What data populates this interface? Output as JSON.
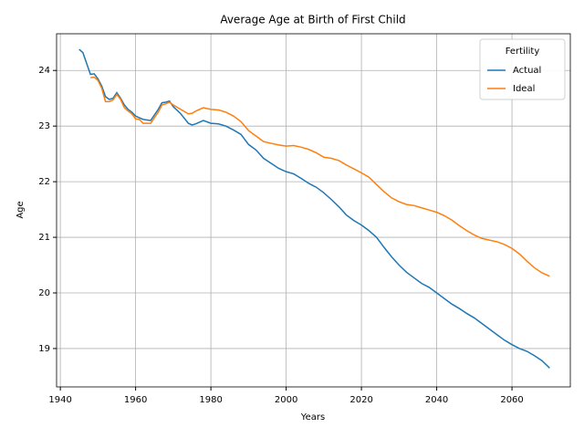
{
  "chart_data": {
    "type": "line",
    "title": "Average Age at Birth of First Child",
    "xlabel": "Years",
    "ylabel": "Age",
    "legend_title": "Fertility",
    "legend": "upper right",
    "grid": true,
    "x": [
      1945,
      1946,
      1948,
      1949,
      1950,
      1951,
      1952,
      1953,
      1954,
      1955,
      1956,
      1957,
      1958,
      1959,
      1960,
      1961,
      1962,
      1964,
      1966,
      1967,
      1968,
      1969,
      1970,
      1972,
      1974,
      1975,
      1976,
      1978,
      1980,
      1982,
      1984,
      1986,
      1988,
      1990,
      1992,
      1994,
      1996,
      1998,
      2000,
      2002,
      2004,
      2006,
      2008,
      2010,
      2012,
      2014,
      2016,
      2018,
      2020,
      2022,
      2024,
      2026,
      2028,
      2030,
      2032,
      2034,
      2036,
      2038,
      2040,
      2042,
      2044,
      2046,
      2048,
      2050,
      2052,
      2054,
      2056,
      2058,
      2060,
      2062,
      2064,
      2066,
      2068,
      2070
    ],
    "series": [
      {
        "name": "Actual",
        "color": "#1f77b4",
        "values": [
          24.38,
          24.32,
          23.93,
          23.94,
          23.85,
          23.72,
          23.53,
          23.48,
          23.5,
          23.6,
          23.5,
          23.38,
          23.3,
          23.25,
          23.18,
          23.15,
          23.12,
          23.1,
          23.3,
          23.42,
          23.43,
          23.45,
          23.35,
          23.22,
          23.05,
          23.02,
          23.04,
          23.1,
          23.05,
          23.04,
          23.0,
          22.93,
          22.85,
          22.67,
          22.57,
          22.42,
          22.33,
          22.24,
          22.18,
          22.14,
          22.06,
          21.97,
          21.9,
          21.8,
          21.68,
          21.55,
          21.4,
          21.3,
          21.22,
          21.12,
          21.0,
          20.82,
          20.65,
          20.5,
          20.37,
          20.27,
          20.17,
          20.1,
          20.0,
          19.9,
          19.8,
          19.72,
          19.63,
          19.55,
          19.45,
          19.35,
          19.25,
          19.15,
          19.07,
          19.0,
          18.95,
          18.87,
          18.78,
          18.65
        ]
      },
      {
        "name": "Ideal",
        "color": "#ff7f0e",
        "values": [
          null,
          null,
          23.87,
          23.88,
          23.82,
          23.68,
          23.44,
          23.44,
          23.47,
          23.57,
          23.48,
          23.33,
          23.27,
          23.22,
          23.13,
          23.12,
          23.05,
          23.05,
          23.25,
          23.38,
          23.4,
          23.43,
          23.38,
          23.3,
          23.22,
          23.23,
          23.27,
          23.33,
          23.3,
          23.29,
          23.25,
          23.18,
          23.08,
          22.92,
          22.82,
          22.72,
          22.69,
          22.66,
          22.64,
          22.65,
          22.62,
          22.58,
          22.52,
          22.44,
          22.42,
          22.38,
          22.3,
          22.23,
          22.16,
          22.08,
          21.95,
          21.82,
          21.71,
          21.64,
          21.59,
          21.57,
          21.53,
          21.49,
          21.45,
          21.39,
          21.31,
          21.21,
          21.12,
          21.04,
          20.98,
          20.95,
          20.92,
          20.87,
          20.8,
          20.7,
          20.57,
          20.45,
          20.36,
          20.3
        ]
      }
    ],
    "xlim": [
      1939,
      2075.5
    ],
    "xticks": [
      1940,
      1960,
      1980,
      2000,
      2020,
      2040,
      2060
    ],
    "ylim": [
      18.31,
      24.66
    ],
    "yticks": [
      19,
      20,
      21,
      22,
      23,
      24
    ]
  }
}
